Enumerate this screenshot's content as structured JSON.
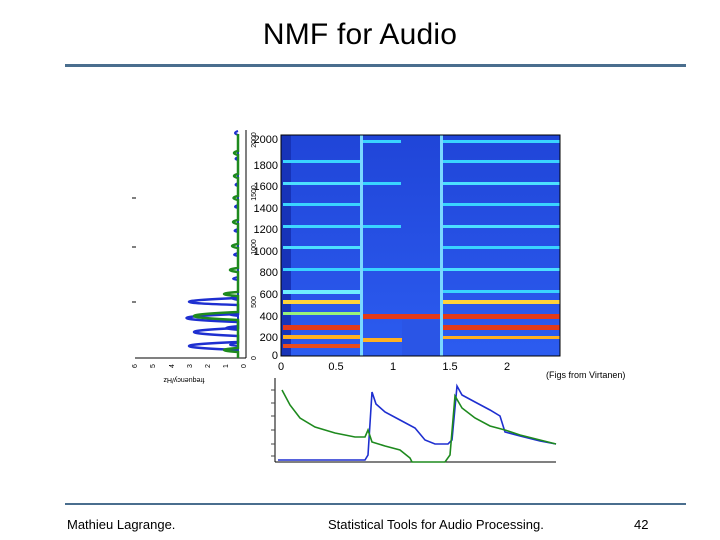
{
  "slide": {
    "title": "NMF for Audio",
    "caption": "(Figs from Virtanen)",
    "footer_left": "Mathieu Lagrange.",
    "footer_center": "Statistical Tools for Audio Processing.",
    "page_number": "42"
  },
  "figure": {
    "spectrogram": {
      "y_ticks": [
        "0",
        "200",
        "400",
        "600",
        "800",
        "1000",
        "1200",
        "1400",
        "1600",
        "1800",
        "2000"
      ],
      "x_ticks": [
        "0",
        "0.5",
        "1",
        "1.5",
        "2"
      ]
    },
    "basis_panel": {
      "freq_ticks": [
        "0",
        "500",
        "1000",
        "1500",
        "2000"
      ],
      "amp_ticks": [
        "6",
        "5",
        "4",
        "3",
        "2",
        "1",
        "0"
      ],
      "freq_label": "frequency/Hz"
    },
    "colors": {
      "background_blue": "#1f3fd6",
      "harmonic_cyan": "#39d4ff",
      "harmonic_red": "#e23a1a",
      "series_blue": "#1e2fd0",
      "series_green": "#1e8a1e",
      "rule": "#4a6e8e"
    }
  }
}
